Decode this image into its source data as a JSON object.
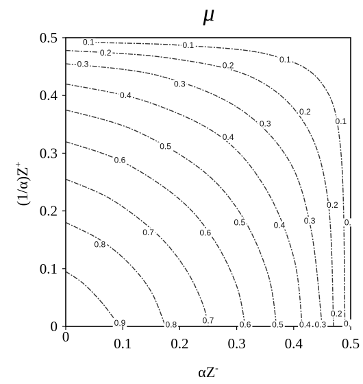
{
  "chart_data": {
    "type": "contour",
    "title": "μ",
    "xlabel": "αZ",
    "xlabel_sup": "-",
    "ylabel": "(1/α)Z",
    "ylabel_sup": "+",
    "xlim": [
      0,
      0.5
    ],
    "ylim": [
      0,
      0.5
    ],
    "x_ticks": [
      {
        "value": 0,
        "label": "0"
      },
      {
        "value": 0.1,
        "label": "0.1"
      },
      {
        "value": 0.2,
        "label": "0.2"
      },
      {
        "value": 0.3,
        "label": "0.3"
      },
      {
        "value": 0.4,
        "label": "0.4"
      },
      {
        "value": 0.5,
        "label": "0.5"
      }
    ],
    "y_ticks": [
      {
        "value": 0,
        "label": "0"
      },
      {
        "value": 0.1,
        "label": "0.1"
      },
      {
        "value": 0.2,
        "label": "0.2"
      },
      {
        "value": 0.3,
        "label": "0.3"
      },
      {
        "value": 0.4,
        "label": "0.4"
      },
      {
        "value": 0.5,
        "label": "0.5"
      }
    ],
    "grid": false,
    "line_color": "#333333",
    "contours": [
      {
        "level": 0.9,
        "points": [
          [
            0,
            0.095
          ],
          [
            0.03,
            0.075
          ],
          [
            0.06,
            0.045
          ],
          [
            0.08,
            0.02
          ],
          [
            0.095,
            0
          ]
        ]
      },
      {
        "level": 0.8,
        "points": [
          [
            0,
            0.18
          ],
          [
            0.06,
            0.15
          ],
          [
            0.11,
            0.11
          ],
          [
            0.15,
            0.06
          ],
          [
            0.175,
            0
          ]
        ]
      },
      {
        "level": 0.7,
        "points": [
          [
            0,
            0.255
          ],
          [
            0.08,
            0.22
          ],
          [
            0.16,
            0.16
          ],
          [
            0.21,
            0.1
          ],
          [
            0.24,
            0.04
          ],
          [
            0.25,
            0
          ]
        ]
      },
      {
        "level": 0.6,
        "points": [
          [
            0,
            0.32
          ],
          [
            0.1,
            0.285
          ],
          [
            0.2,
            0.22
          ],
          [
            0.26,
            0.15
          ],
          [
            0.3,
            0.07
          ],
          [
            0.315,
            0
          ]
        ]
      },
      {
        "level": 0.5,
        "points": [
          [
            0,
            0.375
          ],
          [
            0.12,
            0.34
          ],
          [
            0.24,
            0.27
          ],
          [
            0.31,
            0.19
          ],
          [
            0.355,
            0.09
          ],
          [
            0.37,
            0
          ]
        ]
      },
      {
        "level": 0.4,
        "points": [
          [
            0,
            0.42
          ],
          [
            0.14,
            0.39
          ],
          [
            0.27,
            0.33
          ],
          [
            0.35,
            0.24
          ],
          [
            0.4,
            0.12
          ],
          [
            0.415,
            0
          ]
        ]
      },
      {
        "level": 0.3,
        "points": [
          [
            0,
            0.455
          ],
          [
            0.16,
            0.435
          ],
          [
            0.3,
            0.38
          ],
          [
            0.39,
            0.29
          ],
          [
            0.43,
            0.17
          ],
          [
            0.45,
            0
          ]
        ]
      },
      {
        "level": 0.2,
        "points": [
          [
            0,
            0.478
          ],
          [
            0.18,
            0.465
          ],
          [
            0.33,
            0.43
          ],
          [
            0.42,
            0.35
          ],
          [
            0.46,
            0.22
          ],
          [
            0.47,
            0
          ]
        ]
      },
      {
        "level": 0.1,
        "points": [
          [
            0.03,
            0.492
          ],
          [
            0.2,
            0.487
          ],
          [
            0.36,
            0.47
          ],
          [
            0.45,
            0.42
          ],
          [
            0.483,
            0.3
          ],
          [
            0.49,
            0
          ]
        ]
      }
    ],
    "contour_labels": [
      {
        "text": "0.1",
        "x": 0.04,
        "y": 0.492
      },
      {
        "text": "0.1",
        "x": 0.215,
        "y": 0.487
      },
      {
        "text": "0.1",
        "x": 0.385,
        "y": 0.462
      },
      {
        "text": "0.1",
        "x": 0.483,
        "y": 0.355
      },
      {
        "text": "0.2",
        "x": 0.07,
        "y": 0.474
      },
      {
        "text": "0.2",
        "x": 0.285,
        "y": 0.452
      },
      {
        "text": "0.2",
        "x": 0.42,
        "y": 0.372
      },
      {
        "text": "0.2",
        "x": 0.468,
        "y": 0.21
      },
      {
        "text": "0.2",
        "x": 0.475,
        "y": 0.022
      },
      {
        "text": "0.3",
        "x": 0.03,
        "y": 0.454
      },
      {
        "text": "0.3",
        "x": 0.2,
        "y": 0.42
      },
      {
        "text": "0.3",
        "x": 0.35,
        "y": 0.351
      },
      {
        "text": "0.3",
        "x": 0.428,
        "y": 0.183
      },
      {
        "text": "0.3",
        "x": 0.447,
        "y": 0.003
      },
      {
        "text": "0.4",
        "x": 0.105,
        "y": 0.4
      },
      {
        "text": "0.4",
        "x": 0.285,
        "y": 0.328
      },
      {
        "text": "0.4",
        "x": 0.375,
        "y": 0.175
      },
      {
        "text": "0.4",
        "x": 0.42,
        "y": 0.003
      },
      {
        "text": "0.5",
        "x": 0.175,
        "y": 0.312
      },
      {
        "text": "0.5",
        "x": 0.305,
        "y": 0.18
      },
      {
        "text": "0.5",
        "x": 0.372,
        "y": 0.003
      },
      {
        "text": "0.6",
        "x": 0.095,
        "y": 0.288
      },
      {
        "text": "0.6",
        "x": 0.245,
        "y": 0.162
      },
      {
        "text": "0.6",
        "x": 0.315,
        "y": 0.003
      },
      {
        "text": "0.7",
        "x": 0.145,
        "y": 0.163
      },
      {
        "text": "0.7",
        "x": 0.25,
        "y": 0.01
      },
      {
        "text": "0.8",
        "x": 0.06,
        "y": 0.142
      },
      {
        "text": "0.8",
        "x": 0.185,
        "y": 0.003
      },
      {
        "text": "0.9",
        "x": 0.095,
        "y": 0.006
      },
      {
        "text": "0.",
        "x": 0.495,
        "y": 0.18
      },
      {
        "text": "0.",
        "x": 0.494,
        "y": 0.005
      }
    ]
  }
}
